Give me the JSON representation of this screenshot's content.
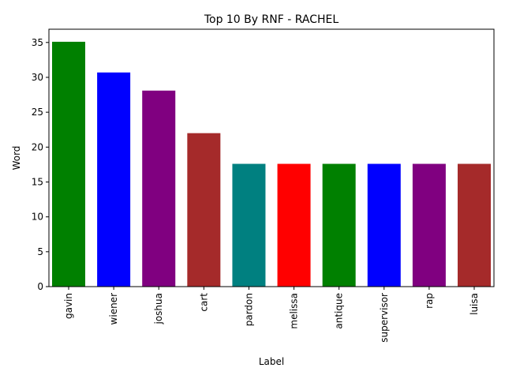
{
  "chart_data": {
    "type": "bar",
    "title": "Top 10 By RNF - RACHEL",
    "xlabel": "Label",
    "ylabel": "Word",
    "categories": [
      "gavin",
      "wiener",
      "joshua",
      "cart",
      "pardon",
      "melissa",
      "antique",
      "supervisor",
      "rap",
      "luisa"
    ],
    "values": [
      35.1,
      30.7,
      28.1,
      22.0,
      17.6,
      17.6,
      17.6,
      17.6,
      17.6,
      17.6
    ],
    "bar_colors": [
      "#008000",
      "#0000ff",
      "#800080",
      "#a52a2a",
      "#008080",
      "#ff0000",
      "#008000",
      "#0000ff",
      "#800080",
      "#a52a2a"
    ],
    "ylim": [
      0,
      36.9
    ],
    "yticks": [
      0,
      5,
      10,
      15,
      20,
      25,
      30,
      35
    ],
    "grid": false,
    "legend": "none"
  }
}
